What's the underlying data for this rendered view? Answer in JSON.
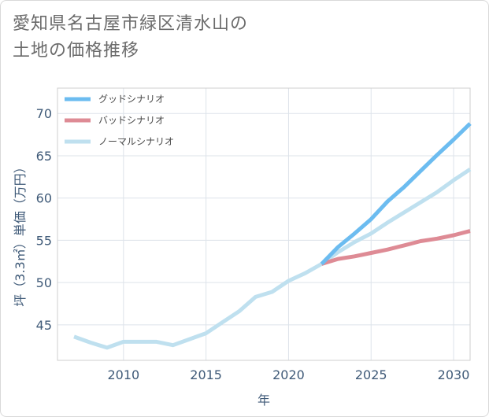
{
  "title": {
    "line1": "愛知県名古屋市緑区清水山の",
    "line2": "土地の価格推移"
  },
  "chart_data": {
    "type": "line",
    "xlabel": "年",
    "ylabel": "坪（3.3㎡）単価（万円）",
    "xlim": [
      2006,
      2031
    ],
    "ylim": [
      40.8,
      73
    ],
    "x_ticks": [
      2010,
      2015,
      2020,
      2025,
      2030
    ],
    "y_ticks": [
      45,
      50,
      55,
      60,
      65,
      70
    ],
    "grid": true,
    "legend_position": "top-left",
    "series": [
      {
        "name": "グッドシナリオ",
        "color": "#6cbcf0",
        "x": [
          2022,
          2023,
          2024,
          2025,
          2026,
          2027,
          2028,
          2029,
          2030,
          2031
        ],
        "values": [
          52.2,
          54.2,
          55.8,
          57.5,
          59.6,
          61.3,
          63.2,
          65.1,
          66.9,
          68.8
        ]
      },
      {
        "name": "バッドシナリオ",
        "color": "#de8b95",
        "x": [
          2022,
          2023,
          2024,
          2025,
          2026,
          2027,
          2028,
          2029,
          2030,
          2031
        ],
        "values": [
          52.2,
          52.8,
          53.1,
          53.5,
          53.9,
          54.4,
          54.9,
          55.2,
          55.6,
          56.1
        ]
      },
      {
        "name": "ノーマルシナリオ",
        "color": "#bfe0ef",
        "x": [
          2007,
          2008,
          2009,
          2010,
          2011,
          2012,
          2013,
          2014,
          2015,
          2016,
          2017,
          2018,
          2019,
          2020,
          2021,
          2022,
          2023,
          2024,
          2025,
          2026,
          2027,
          2028,
          2029,
          2030,
          2031
        ],
        "values": [
          43.6,
          42.9,
          42.3,
          43.0,
          43.0,
          43.0,
          42.6,
          43.3,
          44.0,
          45.3,
          46.6,
          48.3,
          48.9,
          50.2,
          51.1,
          52.2,
          53.6,
          54.8,
          55.8,
          57.1,
          58.3,
          59.5,
          60.7,
          62.1,
          63.4
        ]
      }
    ]
  }
}
